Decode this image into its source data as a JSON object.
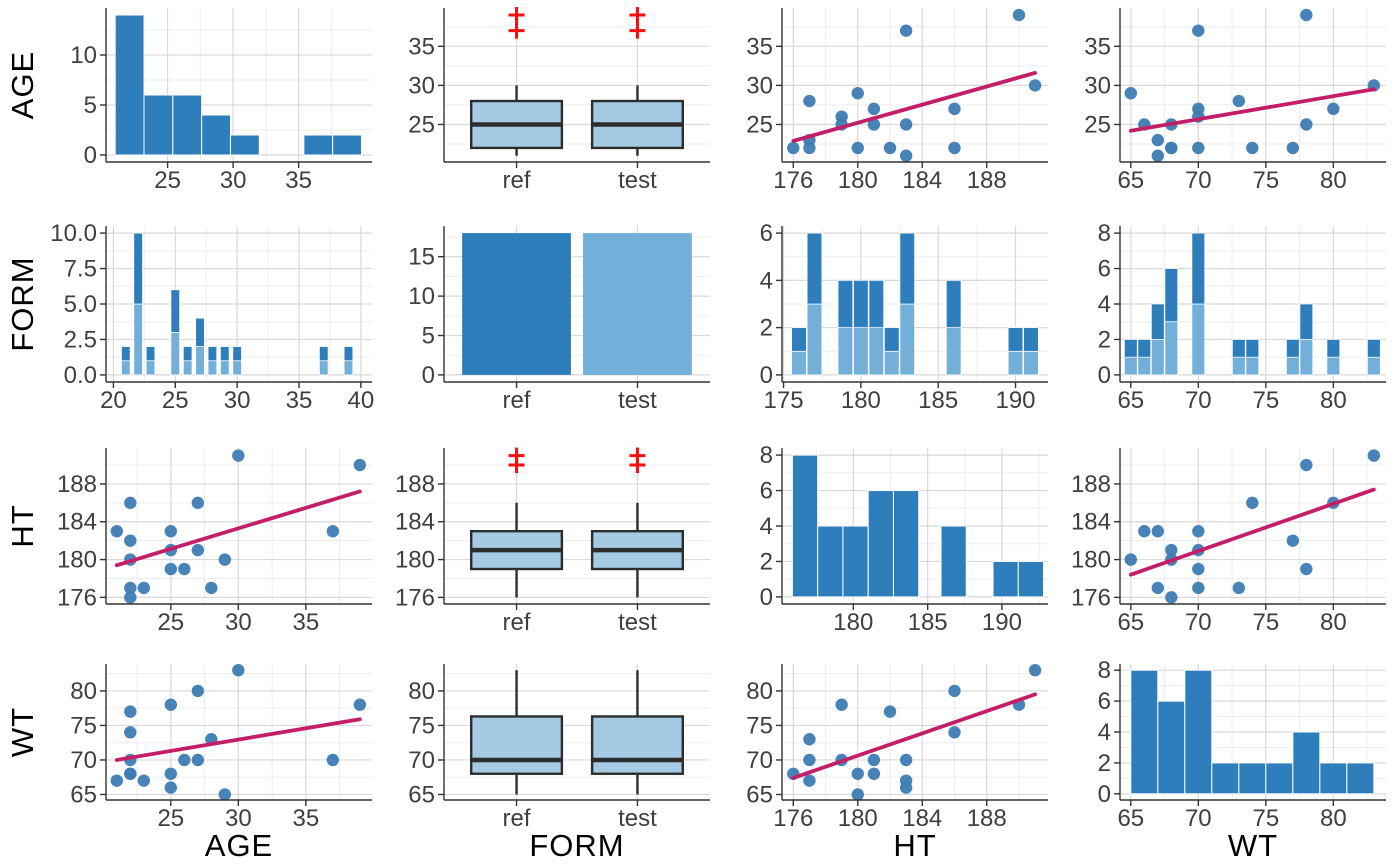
{
  "matrix": {
    "row_labels": [
      "AGE",
      "FORM",
      "HT",
      "WT"
    ],
    "col_labels": [
      "AGE",
      "FORM",
      "HT",
      "WT"
    ]
  },
  "colors": {
    "bar_dark": "#2e7ebc",
    "bar_light": "#73b0d9",
    "box_fill": "#a5cae3",
    "box_stroke": "#2d2d2d",
    "point": "#3e7cb3",
    "trend": "#c41e68",
    "outlier_red": "#fb0d0d",
    "grid_major": "#d9d9d9",
    "grid_minor": "#ededed",
    "axis_line": "#333333",
    "tick_text": "#3f3f3f",
    "label_text": "#000000",
    "panel_bg": "#ffffff"
  },
  "chart_data": {
    "type": "pairs-matrix",
    "variables": [
      "AGE",
      "FORM",
      "HT",
      "WT"
    ],
    "form_levels": [
      "ref",
      "test"
    ],
    "n_per_form": 18,
    "subjects": [
      {
        "AGE": 22,
        "HT": 176,
        "WT": 68
      },
      {
        "AGE": 23,
        "HT": 177,
        "WT": 67
      },
      {
        "AGE": 22,
        "HT": 177,
        "WT": 70
      },
      {
        "AGE": 28,
        "HT": 177,
        "WT": 73
      },
      {
        "AGE": 26,
        "HT": 179,
        "WT": 70
      },
      {
        "AGE": 25,
        "HT": 179,
        "WT": 78
      },
      {
        "AGE": 22,
        "HT": 180,
        "WT": 68
      },
      {
        "AGE": 29,
        "HT": 180,
        "WT": 65
      },
      {
        "AGE": 25,
        "HT": 181,
        "WT": 68
      },
      {
        "AGE": 27,
        "HT": 181,
        "WT": 70
      },
      {
        "AGE": 22,
        "HT": 182,
        "WT": 77
      },
      {
        "AGE": 21,
        "HT": 183,
        "WT": 67
      },
      {
        "AGE": 25,
        "HT": 183,
        "WT": 66
      },
      {
        "AGE": 37,
        "HT": 183,
        "WT": 70
      },
      {
        "AGE": 22,
        "HT": 186,
        "WT": 74
      },
      {
        "AGE": 27,
        "HT": 186,
        "WT": 80
      },
      {
        "AGE": 39,
        "HT": 190,
        "WT": 78
      },
      {
        "AGE": 30,
        "HT": 191,
        "WT": 83
      }
    ],
    "cells": [
      {
        "row": 0,
        "col": 0,
        "var_y": "AGE",
        "var_x": "AGE",
        "type": "hist",
        "xd": [
          20.3,
          40.6
        ],
        "xt": [
          25,
          30,
          35
        ],
        "yd": [
          -0.7,
          14.7
        ],
        "yt": [
          0,
          5,
          10
        ],
        "bars": [
          [
            21,
            23.2,
            14
          ],
          [
            23.2,
            25.4,
            6
          ],
          [
            25.4,
            27.6,
            6
          ],
          [
            27.6,
            29.8,
            4
          ],
          [
            29.8,
            32,
            2
          ],
          [
            35.4,
            37.6,
            2
          ],
          [
            37.6,
            39.8,
            2
          ]
        ]
      },
      {
        "row": 0,
        "col": 1,
        "var_y": "AGE",
        "var_x": "FORM",
        "type": "box",
        "cats": [
          "ref",
          "test"
        ],
        "yd": [
          20.2,
          39.9
        ],
        "yt": [
          25,
          30,
          35
        ],
        "box": {
          "lo": 21,
          "q1": 22,
          "med": 25,
          "q3": 28,
          "hi": 30,
          "out": [
            37,
            39
          ]
        }
      },
      {
        "row": 0,
        "col": 2,
        "var_y": "AGE",
        "var_x": "HT",
        "type": "scatter",
        "x_var": "HT",
        "y_var": "AGE",
        "xd": [
          175.3,
          191.8
        ],
        "xt": [
          176,
          180,
          184,
          188
        ],
        "yd": [
          20.2,
          39.9
        ],
        "yt": [
          25,
          30,
          35
        ],
        "trend": [
          [
            176,
            22.9
          ],
          [
            191,
            31.6
          ]
        ]
      },
      {
        "row": 0,
        "col": 3,
        "var_y": "AGE",
        "var_x": "WT",
        "type": "scatter",
        "x_var": "WT",
        "y_var": "AGE",
        "xd": [
          64.2,
          83.9
        ],
        "xt": [
          65,
          70,
          75,
          80
        ],
        "yd": [
          20.2,
          39.9
        ],
        "yt": [
          25,
          30,
          35
        ],
        "trend": [
          [
            65,
            24.2
          ],
          [
            83,
            29.5
          ]
        ]
      },
      {
        "row": 1,
        "col": 0,
        "var_y": "FORM",
        "var_x": "AGE",
        "type": "stackhist",
        "xd": [
          19.4,
          40.9
        ],
        "xt": [
          20,
          25,
          30,
          35,
          40
        ],
        "yd": [
          -0.5,
          10.5
        ],
        "yt": [
          0,
          2.5,
          5,
          7.5,
          10
        ],
        "ytl": [
          "0.0",
          "2.5",
          "5.0",
          "7.5",
          "10.0"
        ],
        "bw": 0.7,
        "values": [
          [
            21,
            2
          ],
          [
            22,
            10
          ],
          [
            23,
            2
          ],
          [
            25,
            6
          ],
          [
            26,
            2
          ],
          [
            27,
            4
          ],
          [
            28,
            2
          ],
          [
            29,
            2
          ],
          [
            30,
            2
          ],
          [
            37,
            2
          ],
          [
            39,
            2
          ]
        ]
      },
      {
        "row": 1,
        "col": 1,
        "var_y": "FORM",
        "var_x": "FORM",
        "type": "bars",
        "cats": [
          "ref",
          "test"
        ],
        "yd": [
          -0.9,
          18.9
        ],
        "yt": [
          0,
          5,
          10,
          15
        ],
        "heights": [
          18,
          18
        ]
      },
      {
        "row": 1,
        "col": 2,
        "var_y": "FORM",
        "var_x": "HT",
        "type": "stackhist",
        "xd": [
          174.9,
          192.1
        ],
        "xt": [
          175,
          180,
          185,
          190
        ],
        "yd": [
          -0.3,
          6.3
        ],
        "yt": [
          0,
          2,
          4,
          6
        ],
        "bw": 0.95,
        "values": [
          [
            176,
            2
          ],
          [
            177,
            6
          ],
          [
            179,
            4
          ],
          [
            180,
            4
          ],
          [
            181,
            4
          ],
          [
            182,
            2
          ],
          [
            183,
            6
          ],
          [
            186,
            4
          ],
          [
            190,
            2
          ],
          [
            191,
            2
          ]
        ]
      },
      {
        "row": 1,
        "col": 3,
        "var_y": "FORM",
        "var_x": "WT",
        "type": "stackhist",
        "xd": [
          64.2,
          83.9
        ],
        "xt": [
          65,
          70,
          75,
          80
        ],
        "yd": [
          -0.4,
          8.4
        ],
        "yt": [
          0,
          2,
          4,
          6,
          8
        ],
        "bw": 0.95,
        "values": [
          [
            65,
            2
          ],
          [
            66,
            2
          ],
          [
            67,
            4
          ],
          [
            68,
            6
          ],
          [
            70,
            8
          ],
          [
            73,
            2
          ],
          [
            74,
            2
          ],
          [
            77,
            2
          ],
          [
            78,
            4
          ],
          [
            80,
            2
          ],
          [
            83,
            2
          ]
        ]
      },
      {
        "row": 2,
        "col": 0,
        "var_y": "HT",
        "var_x": "AGE",
        "type": "scatter",
        "x_var": "AGE",
        "y_var": "HT",
        "xd": [
          20.2,
          39.9
        ],
        "xt": [
          25,
          30,
          35
        ],
        "yd": [
          175.3,
          191.8
        ],
        "yt": [
          176,
          180,
          184,
          188
        ],
        "trend": [
          [
            21,
            179.4
          ],
          [
            39,
            187.2
          ]
        ]
      },
      {
        "row": 2,
        "col": 1,
        "var_y": "HT",
        "var_x": "FORM",
        "type": "box",
        "cats": [
          "ref",
          "test"
        ],
        "yd": [
          175.3,
          191.8
        ],
        "yt": [
          176,
          180,
          184,
          188
        ],
        "box": {
          "lo": 176,
          "q1": 179,
          "med": 181,
          "q3": 183,
          "hi": 186,
          "out": [
            190,
            191
          ]
        }
      },
      {
        "row": 2,
        "col": 2,
        "var_y": "HT",
        "var_x": "HT",
        "type": "hist",
        "xd": [
          175.2,
          193.1
        ],
        "xt": [
          180,
          185,
          190
        ],
        "yd": [
          -0.4,
          8.4
        ],
        "yt": [
          0,
          2,
          4,
          6,
          8
        ],
        "bars": [
          [
            175.9,
            177.6,
            8
          ],
          [
            177.6,
            179.3,
            4
          ],
          [
            179.3,
            181,
            4
          ],
          [
            181,
            182.7,
            6
          ],
          [
            182.7,
            184.4,
            6
          ],
          [
            185.9,
            187.6,
            4
          ],
          [
            189.4,
            191.1,
            2
          ],
          [
            191.1,
            192.8,
            2
          ]
        ]
      },
      {
        "row": 2,
        "col": 3,
        "var_y": "HT",
        "var_x": "WT",
        "type": "scatter",
        "x_var": "WT",
        "y_var": "HT",
        "xd": [
          64.2,
          83.9
        ],
        "xt": [
          65,
          70,
          75,
          80
        ],
        "yd": [
          175.3,
          191.8
        ],
        "yt": [
          176,
          180,
          184,
          188
        ],
        "trend": [
          [
            65,
            178.4
          ],
          [
            83,
            187.4
          ]
        ]
      },
      {
        "row": 3,
        "col": 0,
        "var_y": "WT",
        "var_x": "AGE",
        "type": "scatter",
        "x_var": "AGE",
        "y_var": "WT",
        "xd": [
          20.2,
          39.9
        ],
        "xt": [
          25,
          30,
          35
        ],
        "yd": [
          64.2,
          83.9
        ],
        "yt": [
          65,
          70,
          75,
          80
        ],
        "trend": [
          [
            21,
            70
          ],
          [
            39,
            75.9
          ]
        ]
      },
      {
        "row": 3,
        "col": 1,
        "var_y": "WT",
        "var_x": "FORM",
        "type": "box",
        "cats": [
          "ref",
          "test"
        ],
        "yd": [
          64.2,
          83.9
        ],
        "yt": [
          65,
          70,
          75,
          80
        ],
        "box": {
          "lo": 65,
          "q1": 68,
          "med": 70,
          "q3": 76.3,
          "hi": 83,
          "out": []
        }
      },
      {
        "row": 3,
        "col": 2,
        "var_y": "WT",
        "var_x": "HT",
        "type": "scatter",
        "x_var": "HT",
        "y_var": "WT",
        "xd": [
          175.3,
          191.8
        ],
        "xt": [
          176,
          180,
          184,
          188
        ],
        "yd": [
          64.2,
          83.9
        ],
        "yt": [
          65,
          70,
          75,
          80
        ],
        "trend": [
          [
            176,
            67.4
          ],
          [
            191,
            79.5
          ]
        ]
      },
      {
        "row": 3,
        "col": 3,
        "var_y": "WT",
        "var_x": "WT",
        "type": "hist",
        "xd": [
          64.2,
          83.9
        ],
        "xt": [
          65,
          70,
          75,
          80
        ],
        "yd": [
          -0.4,
          8.4
        ],
        "yt": [
          0,
          2,
          4,
          6,
          8
        ],
        "bars": [
          [
            65,
            67,
            8
          ],
          [
            67,
            69,
            6
          ],
          [
            69,
            71,
            8
          ],
          [
            71,
            73,
            2
          ],
          [
            73,
            75,
            2
          ],
          [
            75,
            77,
            2
          ],
          [
            77,
            79,
            4
          ],
          [
            79,
            81,
            2
          ],
          [
            81,
            83,
            2
          ]
        ]
      }
    ]
  }
}
